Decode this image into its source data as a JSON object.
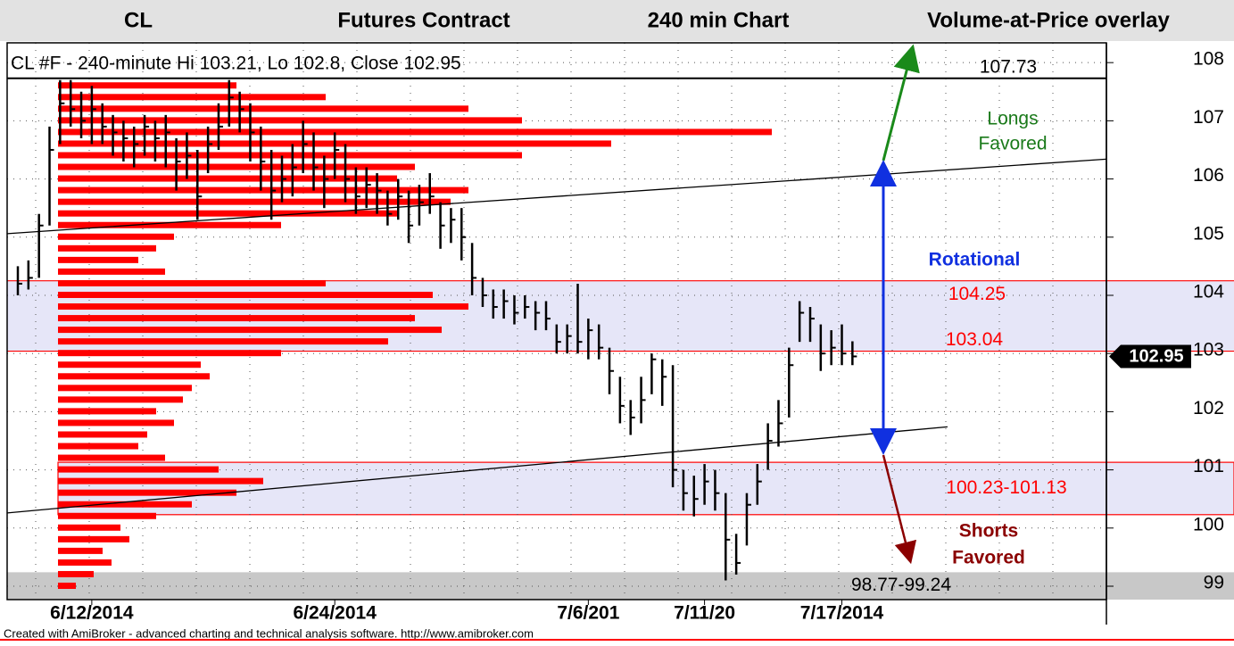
{
  "header": [
    "CL",
    "Futures Contract",
    "240 min Chart",
    "Volume-at-Price overlay"
  ],
  "chart_data": {
    "type": "ohlc",
    "title": "CL #F - 240-minute Hi 103.21, Lo 102.8, Close 102.95",
    "footer": "Created with AmiBroker - advanced charting and technical analysis software. http://www.amibroker.com",
    "ylim": [
      98.77,
      108.34
    ],
    "yticks": [
      99,
      100,
      101,
      102,
      103,
      104,
      105,
      106,
      107,
      108
    ],
    "xlim": [
      -1,
      103
    ],
    "xticks": [
      {
        "value": 7,
        "label": "6/12/2014"
      },
      {
        "value": 30,
        "label": "6/24/2014"
      },
      {
        "value": 54,
        "label": "7/6/201"
      },
      {
        "value": 65,
        "label": "7/11/20"
      },
      {
        "value": 78,
        "label": "7/17/2014"
      }
    ],
    "grid": true,
    "color": "#000000",
    "close": [
      104.2,
      104.3,
      105.2,
      106.5,
      107.3,
      107.2,
      107.0,
      107.2,
      106.9,
      106.8,
      106.7,
      106.6,
      106.9,
      106.7,
      106.8,
      106.3,
      106.4,
      105.7,
      106.6,
      106.9,
      107.4,
      107.2,
      106.8,
      106.3,
      105.8,
      106.0,
      106.2,
      106.6,
      106.2,
      106.0,
      106.5,
      106.0,
      105.7,
      105.9,
      105.8,
      105.4,
      105.7,
      105.2,
      105.6,
      105.7,
      105.2,
      105.3,
      105.0,
      104.3,
      104.0,
      103.8,
      103.9,
      103.7,
      103.8,
      103.7,
      103.6,
      103.2,
      103.3,
      103.2,
      103.4,
      103.1,
      102.7,
      102.1,
      101.9,
      102.2,
      102.9,
      102.6,
      101.0,
      100.6,
      100.5,
      100.8,
      100.6,
      99.8,
      99.4,
      100.4,
      100.8,
      101.5,
      101.8,
      102.8,
      103.7,
      103.6,
      103.0,
      103.1,
      103.0,
      102.95
    ],
    "high": [
      104.5,
      104.6,
      105.4,
      106.9,
      107.7,
      107.7,
      107.5,
      107.6,
      107.3,
      107.1,
      107.0,
      106.9,
      107.1,
      107.0,
      107.1,
      106.7,
      106.8,
      106.5,
      106.9,
      107.3,
      107.7,
      107.5,
      107.3,
      106.9,
      106.5,
      106.4,
      106.6,
      107.0,
      106.8,
      106.4,
      106.8,
      106.6,
      106.2,
      106.2,
      106.1,
      105.8,
      106.0,
      105.8,
      105.9,
      106.1,
      105.6,
      105.5,
      105.5,
      104.9,
      104.3,
      104.1,
      104.1,
      104.0,
      104.0,
      103.9,
      103.9,
      103.5,
      103.5,
      104.2,
      103.6,
      103.5,
      103.1,
      102.6,
      102.2,
      102.6,
      103.0,
      102.9,
      102.8,
      101.0,
      100.9,
      101.1,
      101.0,
      100.6,
      99.9,
      100.6,
      101.1,
      101.8,
      102.2,
      103.1,
      103.9,
      103.8,
      103.5,
      103.4,
      103.5,
      103.21
    ],
    "low": [
      104.0,
      104.1,
      104.3,
      105.2,
      106.6,
      106.9,
      106.7,
      106.6,
      106.6,
      106.4,
      106.3,
      106.2,
      106.4,
      106.3,
      106.2,
      105.8,
      106.0,
      105.3,
      106.1,
      106.5,
      106.9,
      106.8,
      106.3,
      105.8,
      105.3,
      105.6,
      105.7,
      106.1,
      105.8,
      105.5,
      106.0,
      105.6,
      105.4,
      105.5,
      105.4,
      105.2,
      105.3,
      104.9,
      105.2,
      105.4,
      104.8,
      104.9,
      104.6,
      104.0,
      103.8,
      103.6,
      103.6,
      103.5,
      103.6,
      103.4,
      103.4,
      103.0,
      103.0,
      103.0,
      102.9,
      102.9,
      102.3,
      101.8,
      101.6,
      101.8,
      102.3,
      102.1,
      100.7,
      100.3,
      100.2,
      100.4,
      100.3,
      99.1,
      99.2,
      99.7,
      100.4,
      101.0,
      101.4,
      101.9,
      103.2,
      103.2,
      102.7,
      102.8,
      102.8,
      102.8
    ],
    "volume_profile": {
      "color": "#ff0000",
      "levels": [
        99.0,
        99.2,
        99.4,
        99.6,
        99.8,
        100.0,
        100.2,
        100.4,
        100.6,
        100.8,
        101.0,
        101.2,
        101.4,
        101.6,
        101.8,
        102.0,
        102.2,
        102.4,
        102.6,
        102.8,
        103.0,
        103.2,
        103.4,
        103.6,
        103.8,
        104.0,
        104.2,
        104.4,
        104.6,
        104.8,
        105.0,
        105.2,
        105.4,
        105.6,
        105.8,
        106.0,
        106.2,
        106.4,
        106.6,
        106.8,
        107.0,
        107.2,
        107.4,
        107.6
      ],
      "volumes": [
        20,
        40,
        60,
        50,
        80,
        70,
        110,
        150,
        200,
        230,
        180,
        120,
        90,
        100,
        130,
        110,
        140,
        150,
        170,
        160,
        250,
        370,
        430,
        400,
        460,
        420,
        300,
        120,
        90,
        110,
        130,
        250,
        380,
        440,
        460,
        380,
        400,
        520,
        620,
        800,
        520,
        460,
        300,
        200
      ]
    },
    "trendlines": [
      {
        "x": [
          -1,
          103
        ],
        "y": [
          105.06,
          106.34
        ]
      },
      {
        "x": [
          -1,
          88
        ],
        "y": [
          100.26,
          101.74
        ]
      }
    ],
    "level_line": 107.73,
    "rotation_zone": [
      103.04,
      104.25
    ],
    "support_zone": {
      "low": 100.23,
      "high": 101.13,
      "label": "100.23-101.13"
    },
    "bottom_zone": {
      "low": 98.77,
      "high": 99.24,
      "label": "98.77-99.24"
    },
    "longs_label": [
      "Longs",
      "Favored"
    ],
    "rotational_label": "Rotational",
    "shorts_label": [
      "Shorts",
      "Favored"
    ]
  }
}
